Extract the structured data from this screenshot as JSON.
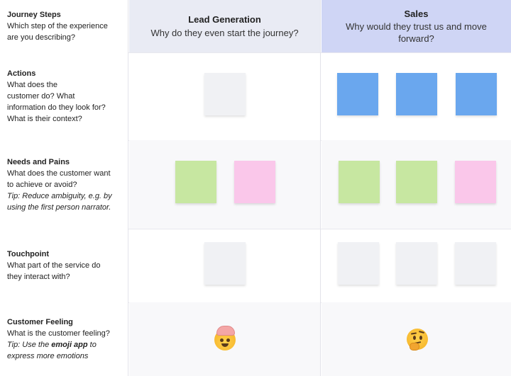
{
  "stages": {
    "lead": {
      "title": "Lead Generation",
      "subtitle": "Why do they even start the journey?"
    },
    "sales": {
      "title": "Sales",
      "subtitle": "Why would they trust us and move\nforward?"
    }
  },
  "rows": {
    "journey": {
      "title": "Journey Steps",
      "desc": "Which step of the experience\nare you describing?"
    },
    "actions": {
      "title": "Actions",
      "desc": "What does the\ncustomer do? What\ninformation do they look for?\nWhat is their context?"
    },
    "needs": {
      "title": "Needs and Pains",
      "desc": "What does the customer want\nto achieve or avoid?",
      "tip": "Tip: Reduce ambiguity, e.g. by\nusing the first person narrator."
    },
    "touch": {
      "title": "Touchpoint",
      "desc": "What part of the service do\nthey interact with?"
    },
    "feeling": {
      "title": "Customer Feeling",
      "desc": "What is the customer feeling?",
      "tip_prefix": "Tip: Use the ",
      "tip_bold": "emoji app",
      "tip_suffix": " to\nexpress more emotions"
    }
  },
  "emojis": {
    "lead": "mind-blown-emoji",
    "sales": "thinking-face-emoji"
  },
  "colors": {
    "grey": "#f0f1f4",
    "blue": "#6aa7ee",
    "green": "#c7e7a1",
    "pink": "#fac7ea",
    "lead_header": "#e9ebf4",
    "sales_header": "#cfd5f5"
  }
}
